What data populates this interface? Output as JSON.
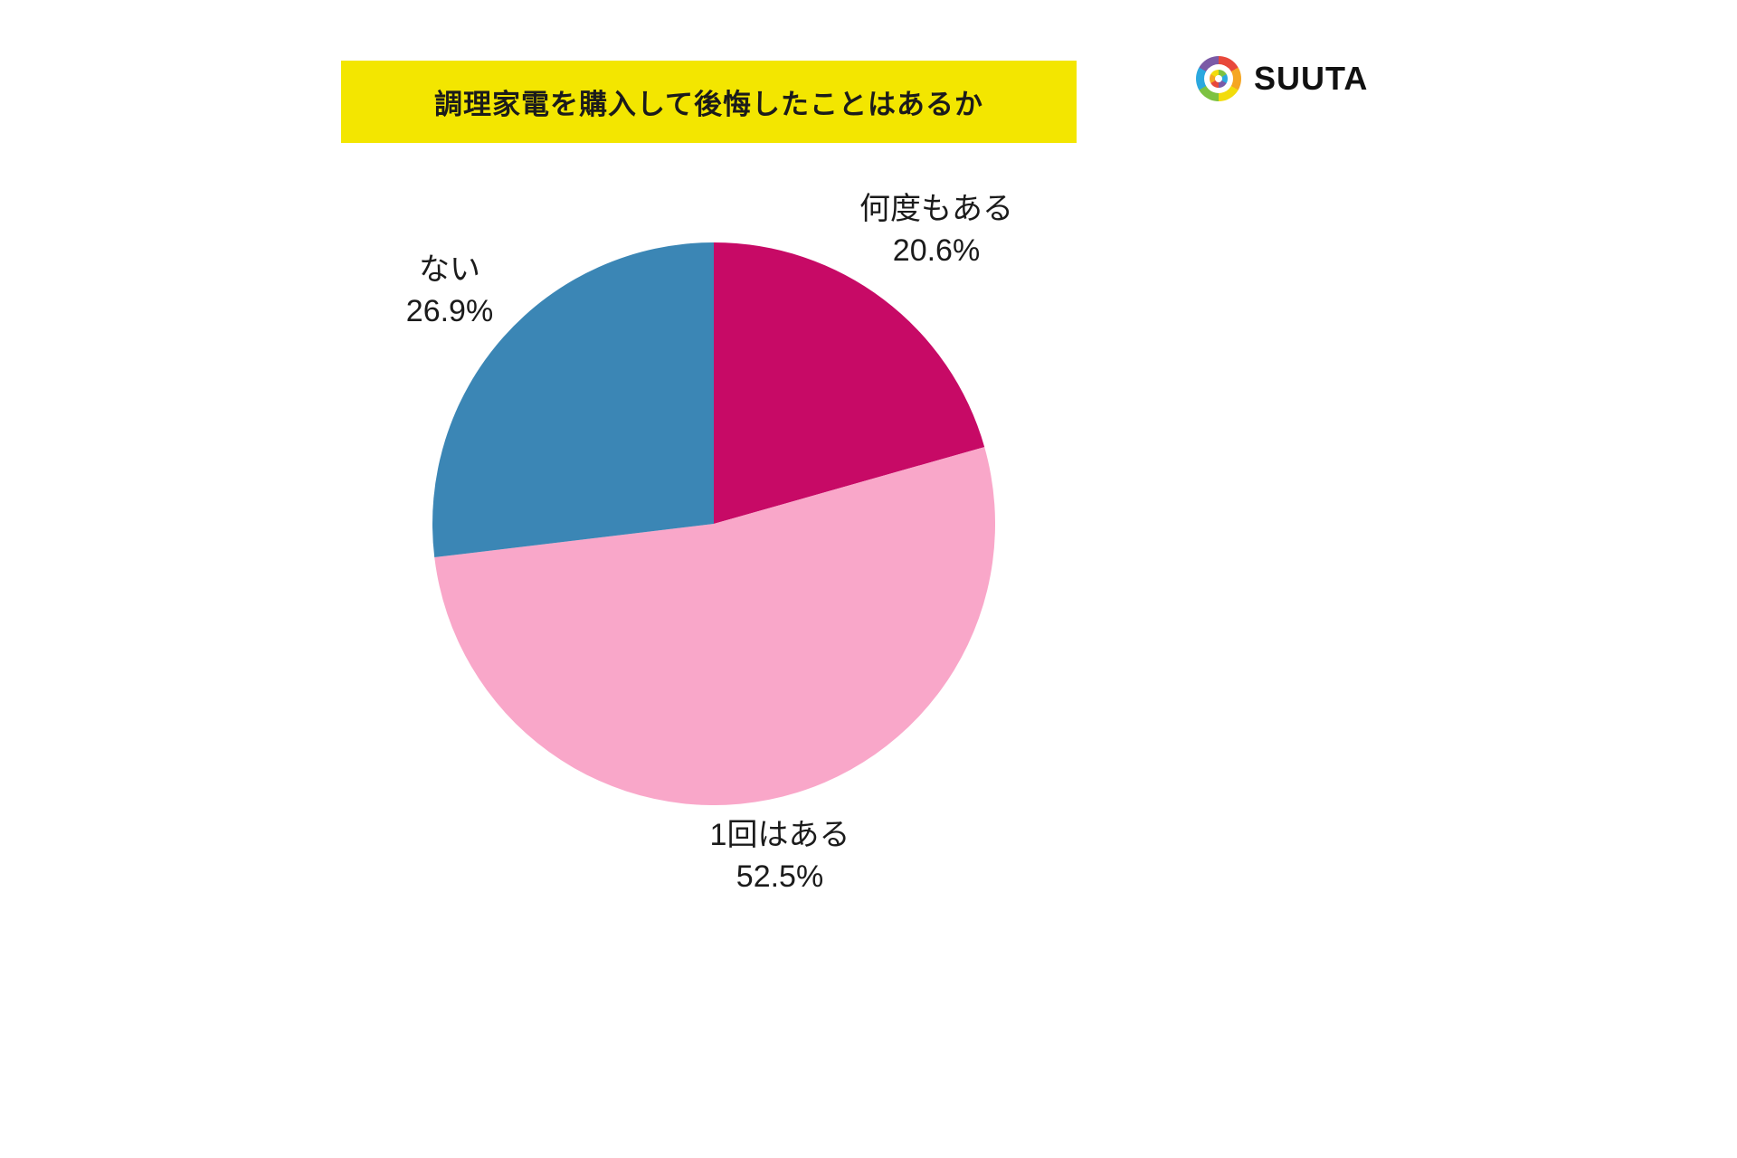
{
  "header": {
    "title": "調理家電を購入して後悔したことはあるか",
    "banner_color": "#F3E600"
  },
  "logo": {
    "text": "SUUTA",
    "ring_colors": [
      "#E8483B",
      "#F5A623",
      "#F2DC0C",
      "#7DC242",
      "#2BA8DF",
      "#7B5AA6"
    ]
  },
  "chart_data": {
    "type": "pie",
    "title": "調理家電を購入して後悔したことはあるか",
    "start_angle_deg": 0,
    "direction": "clockwise",
    "legend_position": "outside-labels",
    "slices": [
      {
        "label": "何度もある",
        "value": 20.6,
        "percent_label": "20.6%",
        "color": "#C70A66"
      },
      {
        "label": "1回はある",
        "value": 52.5,
        "percent_label": "52.5%",
        "color": "#F9A7C9"
      },
      {
        "label": "ない",
        "value": 26.9,
        "percent_label": "26.9%",
        "color": "#3B86B5"
      }
    ]
  }
}
